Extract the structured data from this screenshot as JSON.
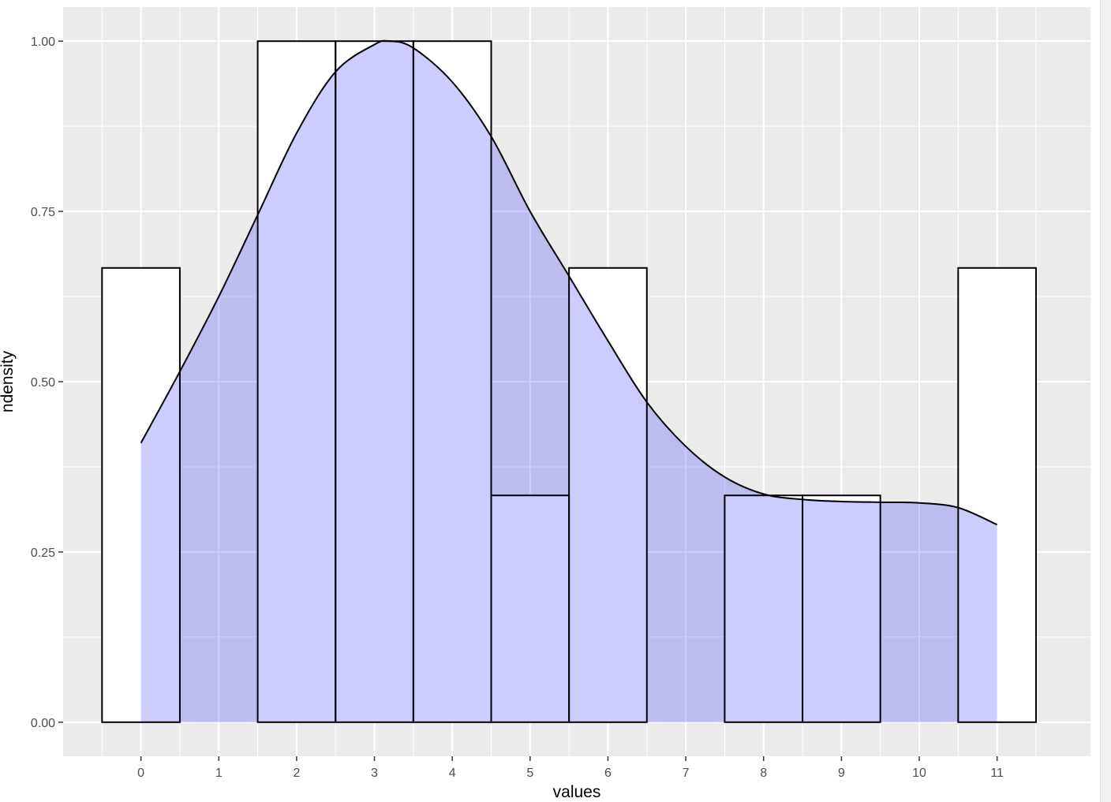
{
  "chart_data": {
    "type": "histogram+density",
    "title": "",
    "xlabel": "values",
    "ylabel": "ndensity",
    "xlim": [
      -1,
      12.2
    ],
    "ylim": [
      -0.05,
      1.05
    ],
    "x_ticks": [
      0,
      1,
      2,
      3,
      4,
      5,
      6,
      7,
      8,
      9,
      10,
      11
    ],
    "y_ticks": [
      "0.00",
      "0.25",
      "0.50",
      "0.75",
      "1.00"
    ],
    "grid": true,
    "histogram": {
      "bin_width": 1,
      "centers": [
        0,
        1,
        2,
        3,
        4,
        5,
        6,
        7,
        8,
        9,
        10,
        11
      ],
      "heights": [
        0.667,
        0.0,
        1.0,
        1.0,
        1.0,
        0.333,
        0.667,
        0.0,
        0.333,
        0.333,
        0.0,
        0.667
      ],
      "fill": "#ffffff",
      "stroke": "#000000"
    },
    "density": {
      "x": [
        0,
        0.5,
        1,
        1.5,
        2,
        2.5,
        3,
        3.2,
        3.5,
        4,
        4.5,
        5,
        5.5,
        6,
        6.5,
        7,
        7.5,
        8,
        8.5,
        9,
        9.5,
        10,
        10.5,
        11
      ],
      "y": [
        0.41,
        0.515,
        0.625,
        0.745,
        0.865,
        0.955,
        0.995,
        1.0,
        0.99,
        0.94,
        0.86,
        0.75,
        0.655,
        0.56,
        0.47,
        0.405,
        0.36,
        0.335,
        0.327,
        0.324,
        0.323,
        0.322,
        0.315,
        0.29
      ],
      "fill": "#0000ff",
      "fill_alpha": 0.2,
      "stroke": "#000000"
    },
    "panel_background": "#ebebeb",
    "grid_color": "#ffffff"
  }
}
